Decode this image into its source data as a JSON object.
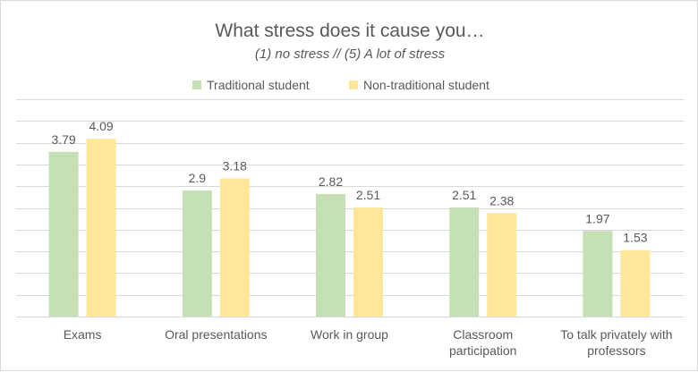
{
  "chart_data": {
    "type": "bar",
    "title": "What stress does it cause you…",
    "subtitle": "(1) no stress // (5) A lot of stress",
    "categories": [
      [
        "Exams"
      ],
      [
        "Oral presentations"
      ],
      [
        "Work in group"
      ],
      [
        "Classroom",
        "participation"
      ],
      [
        "To talk privately with",
        "professors"
      ]
    ],
    "series": [
      {
        "name": "Traditional student",
        "color": "#c5e0b4",
        "values": [
          3.79,
          2.9,
          2.82,
          2.51,
          1.97
        ]
      },
      {
        "name": "Non-traditional student",
        "color": "#ffe699",
        "values": [
          4.09,
          3.18,
          2.51,
          2.38,
          1.53
        ]
      }
    ],
    "ylim": [
      0,
      5
    ],
    "grid": true,
    "legend_position": "top",
    "colors": {
      "gridline": "#d9d9d9",
      "text": "#595959"
    }
  }
}
